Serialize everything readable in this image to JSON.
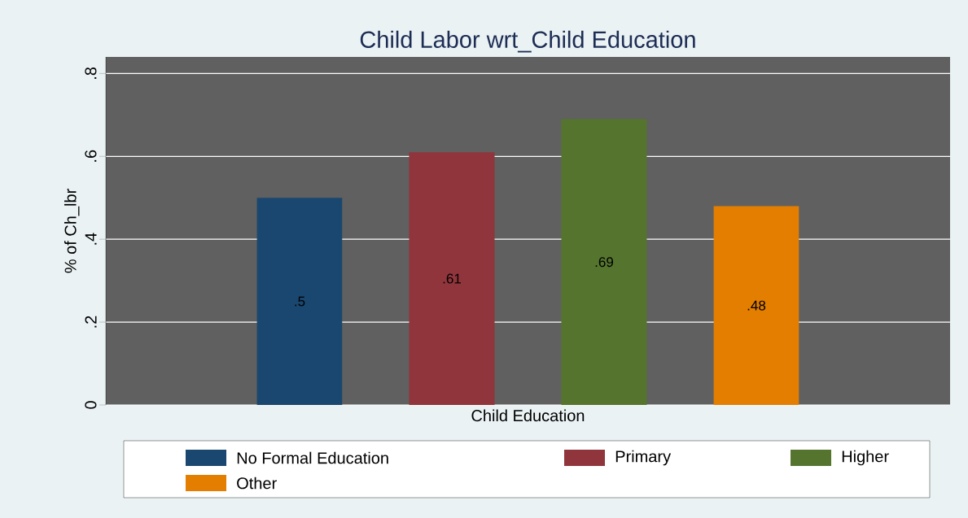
{
  "chart_data": {
    "type": "bar",
    "title": "Child Labor wrt_Child Education",
    "xlabel": "Child Education",
    "ylabel": "% of Ch_lbr",
    "categories": [
      null
    ],
    "series": [
      {
        "name": "No Formal Education",
        "color": "#1a476f",
        "values": [
          0.5
        ],
        "value_labels": [
          ".5"
        ]
      },
      {
        "name": "Primary",
        "color": "#90353b",
        "values": [
          0.61
        ],
        "value_labels": [
          ".61"
        ]
      },
      {
        "name": "Higher",
        "color": "#55752f",
        "values": [
          0.69
        ],
        "value_labels": [
          ".69"
        ]
      },
      {
        "name": "Other",
        "color": "#e37e00",
        "values": [
          0.48
        ],
        "value_labels": [
          ".48"
        ]
      }
    ],
    "ylim": [
      0,
      0.84
    ],
    "yticks": [
      0,
      {
        "value": 0.2,
        "label": ".2"
      },
      {
        "value": 0.4,
        "label": ".4"
      },
      {
        "value": 0.6,
        "label": ".6"
      },
      {
        "value": 0.8,
        "label": ".8"
      }
    ],
    "grid": "y",
    "legend": "bottom"
  }
}
